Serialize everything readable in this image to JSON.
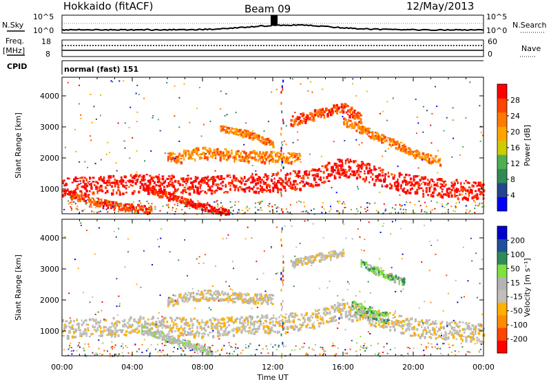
{
  "header": {
    "station": "Hokkaido (fitACF)",
    "beam": "Beam 09",
    "date": "12/May/2013"
  },
  "strip_panels": {
    "nsky_label": "N.Sky",
    "nsearch_label": "N.Search",
    "noise_ticks": [
      "10^5",
      "10^0"
    ],
    "freq_label_1": "Freq.",
    "freq_label_2": "[MHz]",
    "freq_ticks": [
      "18",
      "8"
    ],
    "nave_label": "Nave",
    "nave_ticks": [
      "60",
      "0"
    ],
    "cpid_label": "CPID",
    "cpid_value": "normal (fast) 151"
  },
  "colors": {
    "power": [
      "#0000ff",
      "#23468c",
      "#2e8b57",
      "#4faf50",
      "#cccc00",
      "#ffa500",
      "#ff7a00",
      "#ff4500",
      "#ff0000"
    ],
    "velocity": [
      "#ff0000",
      "#ff4500",
      "#ff8c00",
      "#ffb000",
      "#c0c0b8",
      "#b4b4b4",
      "#80e040",
      "#2e8b57",
      "#20509c",
      "#0000cc"
    ]
  },
  "chart_data": [
    {
      "type": "heatmap",
      "name": "power",
      "ylabel": "Slant Range [km]",
      "xlabel": "",
      "y_ticks": [
        1000,
        2000,
        3000,
        4000
      ],
      "ylim": [
        200,
        4600
      ],
      "colorbar_label": "Power [dB]",
      "colorbar_ticks": [
        "4",
        "8",
        "12",
        "16",
        "20",
        "24",
        "28"
      ],
      "bands": [
        {
          "t": [
            0,
            2,
            4,
            6,
            8,
            10,
            12,
            14,
            16,
            18,
            20,
            22,
            24
          ],
          "r": [
            1100,
            1130,
            1200,
            1180,
            1150,
            1200,
            1250,
            1350,
            1750,
            1450,
            1150,
            1050,
            950
          ],
          "w": 300,
          "level": 8
        },
        {
          "t": [
            4.5,
            6,
            8,
            9.5
          ],
          "r": [
            1100,
            800,
            450,
            250
          ],
          "w": 120,
          "level": 8
        },
        {
          "t": [
            0.5,
            2,
            3.5,
            5
          ],
          "r": [
            800,
            600,
            450,
            350
          ],
          "w": 120,
          "level": 7
        },
        {
          "t": [
            6,
            8,
            10,
            12,
            13.5
          ],
          "r": [
            2000,
            2200,
            2100,
            2050,
            2000
          ],
          "w": 180,
          "level": 6
        },
        {
          "t": [
            13,
            14.5,
            16,
            17
          ],
          "r": [
            3200,
            3450,
            3650,
            3300
          ],
          "w": 160,
          "level": 7
        },
        {
          "t": [
            16,
            18,
            20,
            21.5
          ],
          "r": [
            3200,
            2700,
            2200,
            1900
          ],
          "w": 130,
          "level": 6
        },
        {
          "t": [
            9,
            10.5,
            12
          ],
          "r": [
            3000,
            2800,
            2500
          ],
          "w": 100,
          "level": 6
        }
      ]
    },
    {
      "type": "heatmap",
      "name": "velocity",
      "ylabel": "Slant Range [km]",
      "xlabel": "Time UT",
      "x_ticks": [
        "00:00",
        "04:00",
        "08:00",
        "12:00",
        "16:00",
        "20:00",
        "00:00"
      ],
      "xlim": [
        0,
        24
      ],
      "y_ticks": [
        1000,
        2000,
        3000,
        4000
      ],
      "ylim": [
        200,
        4600
      ],
      "colorbar_label": "Velocity [m s⁻¹]",
      "colorbar_ticks": [
        "-200",
        "-100",
        "-50",
        "-15",
        "15",
        "50",
        "100",
        "200"
      ],
      "bands": [
        {
          "t": [
            0,
            2,
            4,
            6,
            8,
            10,
            12,
            14,
            16,
            18,
            20,
            22,
            24
          ],
          "r": [
            1100,
            1130,
            1200,
            1180,
            1150,
            1200,
            1250,
            1350,
            1750,
            1450,
            1150,
            1050,
            950
          ],
          "w": 300,
          "level": 4
        },
        {
          "t": [
            16.5,
            17.5,
            18.5
          ],
          "r": [
            1800,
            1600,
            1450
          ],
          "w": 200,
          "level": 6
        },
        {
          "t": [
            17,
            18.5,
            19.5
          ],
          "r": [
            3200,
            2800,
            2600
          ],
          "w": 120,
          "level": 6
        },
        {
          "t": [
            6,
            8,
            10,
            12
          ],
          "r": [
            2000,
            2200,
            2100,
            2050
          ],
          "w": 160,
          "level": 4
        },
        {
          "t": [
            13,
            14.5,
            16
          ],
          "r": [
            3200,
            3400,
            3550
          ],
          "w": 120,
          "level": 4
        },
        {
          "t": [
            4.5,
            6.5,
            8.5
          ],
          "r": [
            1100,
            700,
            350
          ],
          "w": 120,
          "level": 5
        }
      ]
    }
  ]
}
